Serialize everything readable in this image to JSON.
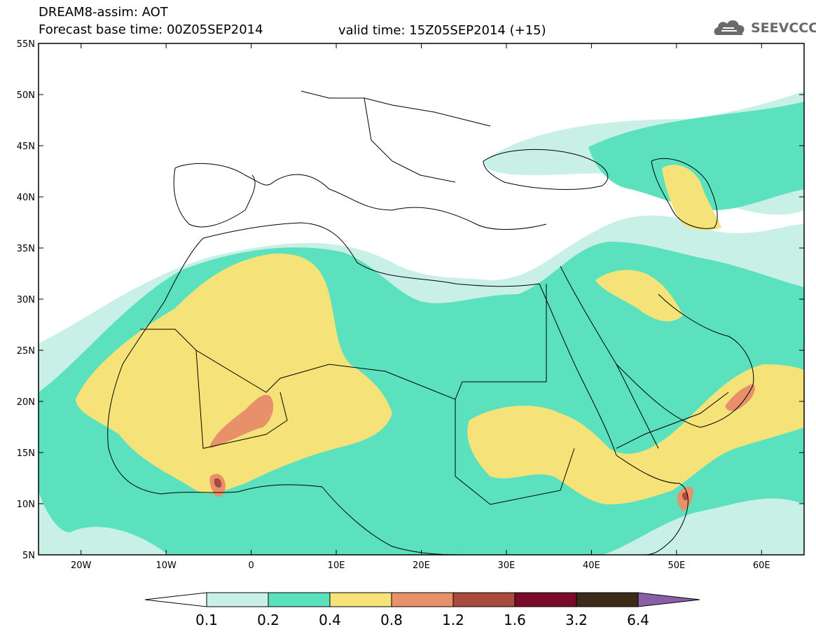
{
  "header": {
    "title": "DREAM8-assim: AOT",
    "base_time": "Forecast base time: 00Z05SEP2014",
    "valid_time": "valid time: 15Z05SEP2014 (+15)"
  },
  "logo": {
    "text": "SEEVCCC",
    "icon": "cloud-icon"
  },
  "map": {
    "lat_labels": [
      "55N",
      "50N",
      "45N",
      "40N",
      "35N",
      "30N",
      "25N",
      "20N",
      "15N",
      "10N",
      "5N"
    ],
    "lat_values": [
      55,
      50,
      45,
      40,
      35,
      30,
      25,
      20,
      15,
      10,
      5
    ],
    "lon_labels": [
      "20W",
      "10W",
      "0",
      "10E",
      "20E",
      "30E",
      "40E",
      "50E",
      "60E"
    ],
    "lon_values": [
      -20,
      -10,
      0,
      10,
      20,
      30,
      40,
      50,
      60
    ],
    "extent": {
      "lon_min": -25,
      "lon_max": 65,
      "lat_min": 5,
      "lat_max": 55
    }
  },
  "colorbar": {
    "labels": [
      "0.1",
      "0.2",
      "0.4",
      "0.8",
      "1.2",
      "1.6",
      "3.2",
      "6.4"
    ],
    "colors": [
      "#c8f0e6",
      "#5be1bd",
      "#f5e37a",
      "#e8906a",
      "#aa4a3e",
      "#7a0a2a",
      "#3e2a18",
      "#8a5fa8"
    ],
    "under_color": "#ffffff"
  },
  "colors": {
    "aot_02": "#5be1bd",
    "aot_01": "#c8f0e6",
    "aot_04": "#f5e37a",
    "aot_08": "#e8906a",
    "aot_12": "#aa4a3e"
  }
}
